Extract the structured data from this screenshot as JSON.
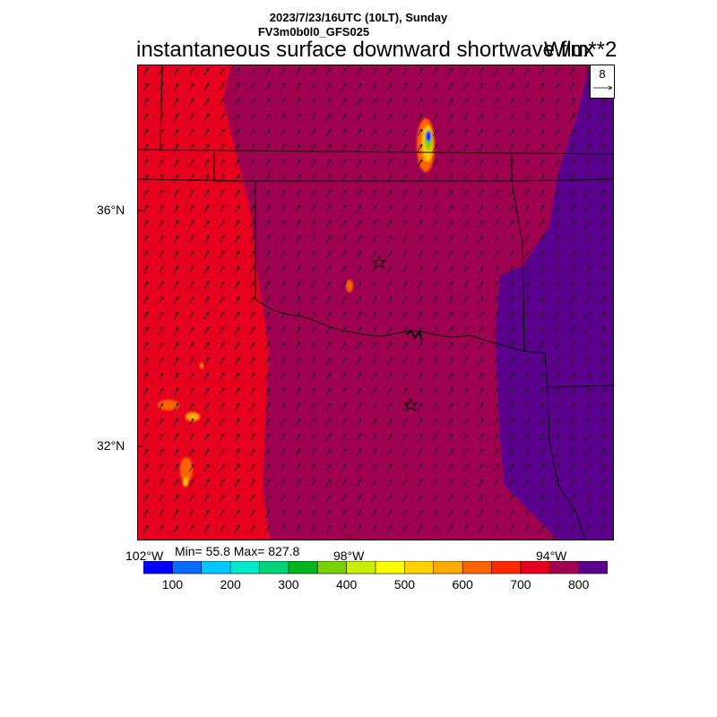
{
  "header": {
    "datetime": "2023/7/23/16UTC (10LT), Sunday",
    "model": "FV3m0b0l0_GFS025"
  },
  "title": "instantaneous surface downward shortwave flux",
  "units": "W/m**2",
  "stats": {
    "text": "Min= 55.8 Max= 827.8",
    "min": 55.8,
    "max": 827.8
  },
  "vector_reference": {
    "value": "8"
  },
  "axes": {
    "lat_ticks": [
      "36°N",
      "32°N"
    ],
    "lon_ticks": [
      "102°W",
      "98°W",
      "94°W"
    ]
  },
  "colorbar": {
    "colors": [
      "#0000ff",
      "#0a6cff",
      "#00c8ff",
      "#00e8c8",
      "#00d278",
      "#00b41e",
      "#78d200",
      "#c8f000",
      "#ffff00",
      "#ffd200",
      "#ffaa00",
      "#ff6400",
      "#ff2800",
      "#e6001e",
      "#a00050",
      "#5a008c"
    ],
    "labels": [
      "100",
      "200",
      "300",
      "400",
      "500",
      "600",
      "700",
      "800"
    ]
  },
  "markers": [
    {
      "name": "station-star-north"
    },
    {
      "name": "station-star-south"
    }
  ]
}
